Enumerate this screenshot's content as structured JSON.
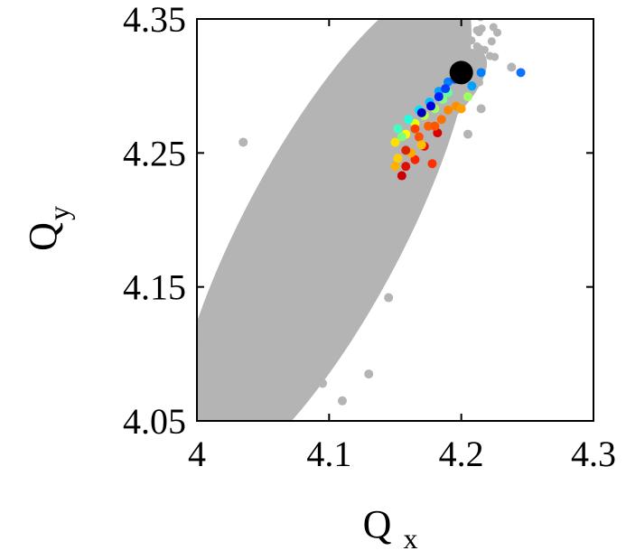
{
  "chart_data": {
    "type": "scatter",
    "title": "",
    "xlabel": "Q",
    "xlabel_subscript": "x",
    "ylabel": "Q",
    "ylabel_subscript": "y",
    "xlim": [
      4.0,
      4.3
    ],
    "ylim": [
      4.05,
      4.35
    ],
    "xticks": [
      4.0,
      4.1,
      4.2,
      4.3
    ],
    "xtick_labels": [
      "4",
      "4.1",
      "4.2",
      "4.3"
    ],
    "yticks": [
      4.05,
      4.15,
      4.25,
      4.35
    ],
    "ytick_labels": [
      "4.05",
      "4.15",
      "4.25",
      "4.35"
    ],
    "grid": false,
    "legend": "none",
    "background_cloud": {
      "color": "#b4b4b4",
      "description_points": [
        [
          4.0,
          4.065
        ],
        [
          4.005,
          4.06
        ],
        [
          4.01,
          4.07
        ],
        [
          4.015,
          4.08
        ],
        [
          4.02,
          4.09
        ],
        [
          4.025,
          4.1
        ],
        [
          4.03,
          4.11
        ],
        [
          4.035,
          4.12
        ],
        [
          4.04,
          4.13
        ],
        [
          4.045,
          4.14
        ],
        [
          4.05,
          4.15
        ],
        [
          4.055,
          4.16
        ],
        [
          4.06,
          4.17
        ],
        [
          4.065,
          4.18
        ],
        [
          4.07,
          4.19
        ],
        [
          4.075,
          4.2
        ],
        [
          4.08,
          4.21
        ],
        [
          4.085,
          4.22
        ],
        [
          4.09,
          4.23
        ],
        [
          4.095,
          4.24
        ],
        [
          4.1,
          4.25
        ],
        [
          4.11,
          4.26
        ],
        [
          4.12,
          4.27
        ],
        [
          4.13,
          4.28
        ],
        [
          4.14,
          4.29
        ],
        [
          4.15,
          4.3
        ],
        [
          4.16,
          4.305
        ],
        [
          4.17,
          4.31
        ],
        [
          4.18,
          4.315
        ],
        [
          4.19,
          4.32
        ],
        [
          4.2,
          4.325
        ],
        [
          4.205,
          4.328
        ]
      ],
      "outliers": [
        [
          4.035,
          4.258
        ],
        [
          4.007,
          4.117
        ],
        [
          4.19,
          4.312
        ],
        [
          4.238,
          4.314
        ],
        [
          4.215,
          4.283
        ],
        [
          4.205,
          4.264
        ],
        [
          4.145,
          4.142
        ],
        [
          4.13,
          4.085
        ],
        [
          4.095,
          4.078
        ],
        [
          4.065,
          4.058
        ],
        [
          4.018,
          4.053
        ],
        [
          4.008,
          4.102
        ],
        [
          4.11,
          4.065
        ],
        [
          4.07,
          4.19
        ]
      ]
    },
    "colored_points": [
      {
        "x": 4.155,
        "y": 4.233,
        "color": "#cc0000"
      },
      {
        "x": 4.158,
        "y": 4.24,
        "color": "#e01000"
      },
      {
        "x": 4.165,
        "y": 4.245,
        "color": "#ff2000"
      },
      {
        "x": 4.178,
        "y": 4.242,
        "color": "#ff3000"
      },
      {
        "x": 4.172,
        "y": 4.255,
        "color": "#ee1010"
      },
      {
        "x": 4.182,
        "y": 4.265,
        "color": "#d80000"
      },
      {
        "x": 4.168,
        "y": 4.262,
        "color": "#ff5000"
      },
      {
        "x": 4.175,
        "y": 4.27,
        "color": "#ff6000"
      },
      {
        "x": 4.185,
        "y": 4.275,
        "color": "#ff7000"
      },
      {
        "x": 4.19,
        "y": 4.282,
        "color": "#ff8800"
      },
      {
        "x": 4.196,
        "y": 4.285,
        "color": "#ff9000"
      },
      {
        "x": 4.2,
        "y": 4.283,
        "color": "#ffa000"
      },
      {
        "x": 4.162,
        "y": 4.25,
        "color": "#ffaa00"
      },
      {
        "x": 4.17,
        "y": 4.256,
        "color": "#ffc000"
      },
      {
        "x": 4.152,
        "y": 4.246,
        "color": "#ffd000"
      },
      {
        "x": 4.15,
        "y": 4.258,
        "color": "#ffe000"
      },
      {
        "x": 4.158,
        "y": 4.264,
        "color": "#ffff00"
      },
      {
        "x": 4.165,
        "y": 4.272,
        "color": "#e8ff10"
      },
      {
        "x": 4.172,
        "y": 4.278,
        "color": "#c0ff40"
      },
      {
        "x": 4.18,
        "y": 4.283,
        "color": "#a0ff60"
      },
      {
        "x": 4.186,
        "y": 4.29,
        "color": "#80ff80"
      },
      {
        "x": 4.19,
        "y": 4.295,
        "color": "#60ffa0"
      },
      {
        "x": 4.152,
        "y": 4.268,
        "color": "#40ffc0"
      },
      {
        "x": 4.16,
        "y": 4.275,
        "color": "#20ffe0"
      },
      {
        "x": 4.168,
        "y": 4.282,
        "color": "#00e0ff"
      },
      {
        "x": 4.176,
        "y": 4.288,
        "color": "#00c0ff"
      },
      {
        "x": 4.183,
        "y": 4.296,
        "color": "#00a0ff"
      },
      {
        "x": 4.19,
        "y": 4.303,
        "color": "#0080ff"
      },
      {
        "x": 4.195,
        "y": 4.305,
        "color": "#0060ff"
      },
      {
        "x": 4.188,
        "y": 4.298,
        "color": "#0040ff"
      },
      {
        "x": 4.183,
        "y": 4.292,
        "color": "#0020ff"
      },
      {
        "x": 4.177,
        "y": 4.285,
        "color": "#0000e0"
      },
      {
        "x": 4.17,
        "y": 4.28,
        "color": "#0000c0"
      },
      {
        "x": 4.165,
        "y": 4.268,
        "color": "#ff4000"
      },
      {
        "x": 4.158,
        "y": 4.252,
        "color": "#dd2200"
      },
      {
        "x": 4.15,
        "y": 4.24,
        "color": "#ffb000"
      },
      {
        "x": 4.155,
        "y": 4.262,
        "color": "#7fff7f"
      },
      {
        "x": 4.18,
        "y": 4.27,
        "color": "#ff5500"
      },
      {
        "x": 4.205,
        "y": 4.292,
        "color": "#a0ff60"
      },
      {
        "x": 4.208,
        "y": 4.3,
        "color": "#00a0ff"
      },
      {
        "x": 4.215,
        "y": 4.31,
        "color": "#0080ff"
      },
      {
        "x": 4.245,
        "y": 4.31,
        "color": "#1070ff"
      },
      {
        "x": 4.2,
        "y": 4.31,
        "color": "#000000",
        "size": "large"
      }
    ]
  }
}
